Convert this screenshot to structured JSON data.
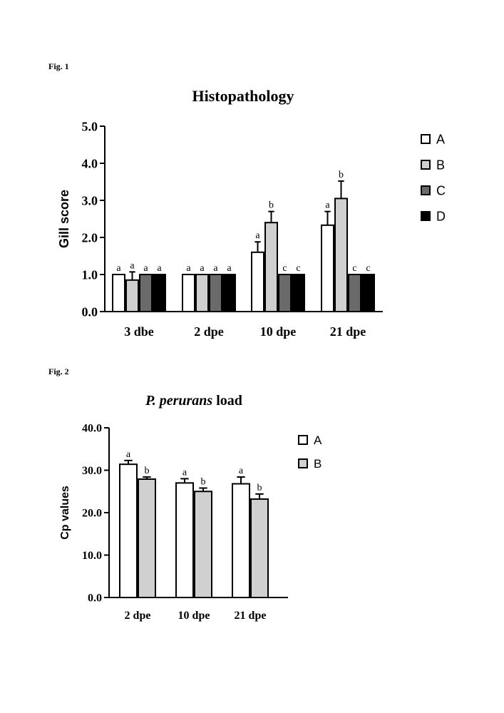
{
  "figure_labels": [
    "Fig. 1",
    "Fig. 2"
  ],
  "colors": {
    "A": "#ffffff",
    "B": "#d0d0d0",
    "C": "#6a6a6a",
    "D": "#000000"
  },
  "chart_data": [
    {
      "type": "bar",
      "title": "Histopathology",
      "xlabel": "",
      "ylabel": "Gill score",
      "ylim": [
        0,
        5
      ],
      "yticks": [
        0,
        1,
        2,
        3,
        4,
        5
      ],
      "ytick_labels": [
        "0.0",
        "1.0",
        "2.0",
        "3.0",
        "4.0",
        "5.0"
      ],
      "categories": [
        "3 dbe",
        "2 dpe",
        "10 dpe",
        "21 dpe"
      ],
      "legend": {
        "position": "right",
        "entries": [
          "A",
          "B",
          "C",
          "D"
        ]
      },
      "series": [
        {
          "name": "A",
          "values": [
            1.0,
            1.0,
            1.6,
            2.33
          ],
          "errors": [
            0,
            0,
            0.28,
            0.37
          ],
          "letters": [
            "a",
            "a",
            "a",
            "a"
          ]
        },
        {
          "name": "B",
          "values": [
            0.85,
            1.0,
            2.4,
            3.05
          ],
          "errors": [
            0.22,
            0,
            0.3,
            0.47
          ],
          "letters": [
            "a",
            "a",
            "b",
            "b"
          ]
        },
        {
          "name": "C",
          "values": [
            1.0,
            1.0,
            1.0,
            1.0
          ],
          "errors": [
            0,
            0,
            0,
            0
          ],
          "letters": [
            "a",
            "a",
            "c",
            "c"
          ]
        },
        {
          "name": "D",
          "values": [
            1.0,
            1.0,
            1.0,
            1.0
          ],
          "errors": [
            0,
            0,
            0,
            0
          ],
          "letters": [
            "a",
            "a",
            "c",
            "c"
          ]
        }
      ]
    },
    {
      "type": "bar",
      "title_italic": "P. perurans",
      "title_rest": " load",
      "xlabel": "",
      "ylabel": "Cp values",
      "ylim": [
        0,
        40
      ],
      "yticks": [
        0,
        10,
        20,
        30,
        40
      ],
      "ytick_labels": [
        "0.0",
        "10.0",
        "20.0",
        "30.0",
        "40.0"
      ],
      "categories": [
        "2 dpe",
        "10 dpe",
        "21 dpe"
      ],
      "legend": {
        "position": "right",
        "entries": [
          "A",
          "B"
        ]
      },
      "series": [
        {
          "name": "A",
          "values": [
            31.4,
            27.0,
            26.8
          ],
          "errors": [
            0.9,
            1.0,
            1.6
          ],
          "letters": [
            "a",
            "a",
            "a"
          ]
        },
        {
          "name": "B",
          "values": [
            27.9,
            25.0,
            23.2
          ],
          "errors": [
            0.5,
            0.8,
            1.2
          ],
          "letters": [
            "b",
            "b",
            "b"
          ]
        }
      ]
    }
  ]
}
